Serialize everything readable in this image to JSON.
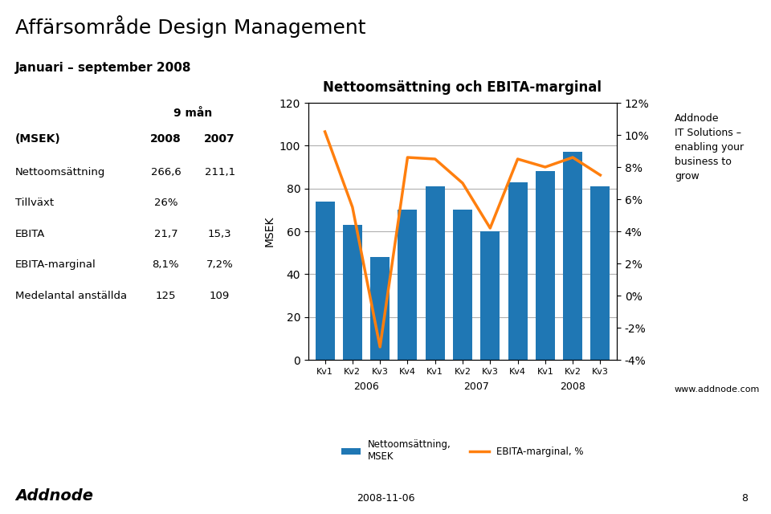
{
  "chart_data": {
    "type": "bar",
    "title": "Nettoomsättning och EBITA-marginal",
    "categories": [
      "Kv1",
      "Kv2",
      "Kv3",
      "Kv4",
      "Kv1",
      "Kv2",
      "Kv3",
      "Kv4",
      "Kv1",
      "Kv2",
      "Kv3"
    ],
    "group_labels": [
      "2006",
      "2007",
      "2008"
    ],
    "series": [
      {
        "name": "Nettoomsättning,\nMSEK",
        "type": "bar",
        "values": [
          74,
          63,
          48,
          70,
          81,
          70,
          60,
          83,
          88,
          97,
          81
        ]
      },
      {
        "name": "EBITA-marginal, %",
        "type": "line",
        "axis": "y2",
        "values": [
          10.2,
          5.5,
          -3.2,
          8.6,
          8.5,
          7.0,
          4.2,
          8.5,
          8.0,
          8.6,
          7.5
        ]
      }
    ],
    "y_label": "MSEK",
    "ylim": [
      0,
      120
    ],
    "yticks": [
      0,
      20,
      40,
      60,
      80,
      100,
      120
    ],
    "y2lim": [
      -4,
      12
    ],
    "y2ticks": [
      {
        "value": -4,
        "label": "-4%"
      },
      {
        "value": -2,
        "label": "-2%"
      },
      {
        "value": 0,
        "label": "0%"
      },
      {
        "value": 2,
        "label": "2%"
      },
      {
        "value": 4,
        "label": "4%"
      },
      {
        "value": 6,
        "label": "6%"
      },
      {
        "value": 8,
        "label": "8%"
      },
      {
        "value": 10,
        "label": "10%"
      },
      {
        "value": 12,
        "label": "12%"
      }
    ],
    "grid": true,
    "legend": "lower center",
    "page_title": "Affärsområde Design Management",
    "subtitle": "Januari – september 2008",
    "annotations": [
      "Addnode\nIT Solutions –\nenabling your\nbusiness to\ngrow",
      "www.addnode.com"
    ],
    "footer": [
      "Addnode",
      "2008-11-06",
      "8"
    ],
    "table": {
      "title": "9 mån",
      "columns": [
        "(MSEK)",
        "2008",
        "2007"
      ],
      "rows": [
        [
          "Nettoomsättning",
          "266,6",
          "211,1"
        ],
        [
          "Tillväxt",
          "26%",
          null
        ],
        [
          "EBITA",
          "21,7",
          "15,3"
        ],
        [
          "EBITA-marginal",
          "8,1%",
          "7,2%"
        ],
        [
          "Medelantal anställda",
          "125",
          "109"
        ]
      ]
    }
  }
}
